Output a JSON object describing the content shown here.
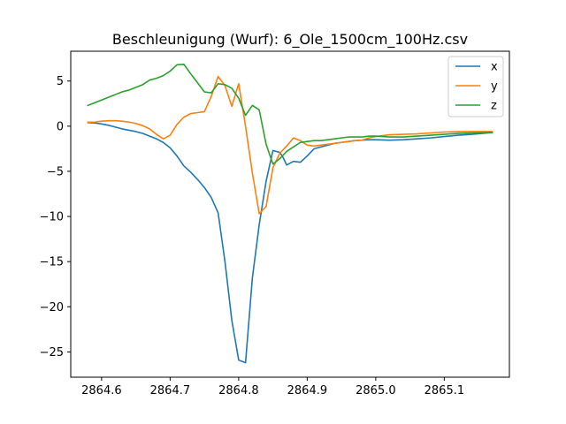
{
  "chart_data": {
    "type": "line",
    "title": "Beschleunigung (Wurf): 6_Ole_1500cm_100Hz.csv",
    "xlabel": "",
    "ylabel": "",
    "xlim": [
      2864.555,
      2865.195
    ],
    "ylim": [
      -27.8,
      8.3
    ],
    "xticks": [
      2864.6,
      2864.7,
      2864.8,
      2864.9,
      2865.0,
      2865.1
    ],
    "xtick_labels": [
      "2864.6",
      "2864.7",
      "2864.8",
      "2864.9",
      "2865.0",
      "2865.1"
    ],
    "yticks": [
      5,
      0,
      -5,
      -10,
      -15,
      -20,
      -25
    ],
    "ytick_labels": [
      "5",
      "0",
      "−5",
      "−10",
      "−15",
      "−20",
      "−25"
    ],
    "grid": false,
    "legend_position": "top-right",
    "series": [
      {
        "name": "x",
        "color": "#1f77b4",
        "x": [
          2864.58,
          2864.59,
          2864.6,
          2864.61,
          2864.62,
          2864.63,
          2864.64,
          2864.65,
          2864.66,
          2864.67,
          2864.68,
          2864.69,
          2864.7,
          2864.71,
          2864.72,
          2864.73,
          2864.74,
          2864.75,
          2864.76,
          2864.77,
          2864.78,
          2864.79,
          2864.8,
          2864.81,
          2864.82,
          2864.83,
          2864.84,
          2864.85,
          2864.86,
          2864.865,
          2864.87,
          2864.88,
          2864.89,
          2864.9,
          2864.91,
          2864.92,
          2864.93,
          2864.94,
          2864.95,
          2864.96,
          2864.97,
          2864.98,
          2864.99,
          2865.0,
          2865.02,
          2865.04,
          2865.06,
          2865.08,
          2865.1,
          2865.12,
          2865.14,
          2865.17
        ],
        "y": [
          0.4,
          0.35,
          0.25,
          0.1,
          -0.1,
          -0.3,
          -0.45,
          -0.6,
          -0.8,
          -1.1,
          -1.4,
          -1.8,
          -2.4,
          -3.3,
          -4.4,
          -5.1,
          -5.9,
          -6.8,
          -7.9,
          -9.6,
          -15.0,
          -21.5,
          -25.9,
          -26.2,
          -16.8,
          -10.9,
          -6.1,
          -2.7,
          -2.9,
          -3.5,
          -4.3,
          -3.9,
          -4.0,
          -3.3,
          -2.5,
          -2.3,
          -2.1,
          -1.9,
          -1.8,
          -1.7,
          -1.6,
          -1.55,
          -1.5,
          -1.5,
          -1.55,
          -1.5,
          -1.4,
          -1.3,
          -1.15,
          -1.0,
          -0.9,
          -0.7
        ]
      },
      {
        "name": "y",
        "color": "#ff7f0e",
        "x": [
          2864.58,
          2864.59,
          2864.6,
          2864.61,
          2864.62,
          2864.63,
          2864.64,
          2864.65,
          2864.66,
          2864.67,
          2864.68,
          2864.69,
          2864.7,
          2864.71,
          2864.72,
          2864.73,
          2864.74,
          2864.75,
          2864.76,
          2864.77,
          2864.78,
          2864.79,
          2864.8,
          2864.81,
          2864.82,
          2864.83,
          2864.84,
          2864.85,
          2864.86,
          2864.87,
          2864.88,
          2864.89,
          2864.9,
          2864.91,
          2864.92,
          2864.93,
          2864.94,
          2864.95,
          2864.96,
          2864.97,
          2864.98,
          2864.99,
          2865.0,
          2865.02,
          2865.04,
          2865.06,
          2865.08,
          2865.1,
          2865.12,
          2865.14,
          2865.17
        ],
        "y": [
          0.45,
          0.45,
          0.55,
          0.6,
          0.6,
          0.55,
          0.45,
          0.3,
          0.05,
          -0.3,
          -0.9,
          -1.4,
          -1.0,
          0.2,
          1.0,
          1.4,
          1.5,
          1.6,
          3.3,
          5.5,
          4.5,
          2.2,
          4.7,
          0.0,
          -5.2,
          -9.7,
          -8.9,
          -4.6,
          -3.0,
          -2.2,
          -1.3,
          -1.6,
          -2.1,
          -2.2,
          -2.1,
          -2.0,
          -1.9,
          -1.8,
          -1.7,
          -1.6,
          -1.55,
          -1.3,
          -1.15,
          -0.95,
          -0.9,
          -0.85,
          -0.75,
          -0.65,
          -0.6,
          -0.6,
          -0.6
        ]
      },
      {
        "name": "z",
        "color": "#2ca02c",
        "x": [
          2864.58,
          2864.59,
          2864.6,
          2864.61,
          2864.62,
          2864.63,
          2864.64,
          2864.65,
          2864.66,
          2864.67,
          2864.68,
          2864.69,
          2864.7,
          2864.71,
          2864.72,
          2864.73,
          2864.74,
          2864.75,
          2864.76,
          2864.77,
          2864.78,
          2864.79,
          2864.8,
          2864.81,
          2864.82,
          2864.83,
          2864.84,
          2864.85,
          2864.86,
          2864.87,
          2864.88,
          2864.89,
          2864.9,
          2864.91,
          2864.92,
          2864.93,
          2864.94,
          2864.95,
          2864.96,
          2864.97,
          2864.98,
          2864.99,
          2865.0,
          2865.02,
          2865.04,
          2865.06,
          2865.08,
          2865.1,
          2865.12,
          2865.14,
          2865.17
        ],
        "y": [
          2.3,
          2.6,
          2.9,
          3.2,
          3.5,
          3.8,
          4.0,
          4.3,
          4.6,
          5.1,
          5.3,
          5.6,
          6.1,
          6.8,
          6.85,
          5.8,
          4.8,
          3.8,
          3.7,
          4.7,
          4.6,
          4.2,
          3.1,
          1.2,
          2.3,
          1.8,
          -2.0,
          -4.2,
          -3.6,
          -2.8,
          -2.3,
          -1.8,
          -1.7,
          -1.6,
          -1.6,
          -1.5,
          -1.4,
          -1.3,
          -1.2,
          -1.2,
          -1.2,
          -1.1,
          -1.1,
          -1.2,
          -1.2,
          -1.1,
          -1.0,
          -0.9,
          -0.8,
          -0.75,
          -0.7
        ]
      }
    ]
  }
}
